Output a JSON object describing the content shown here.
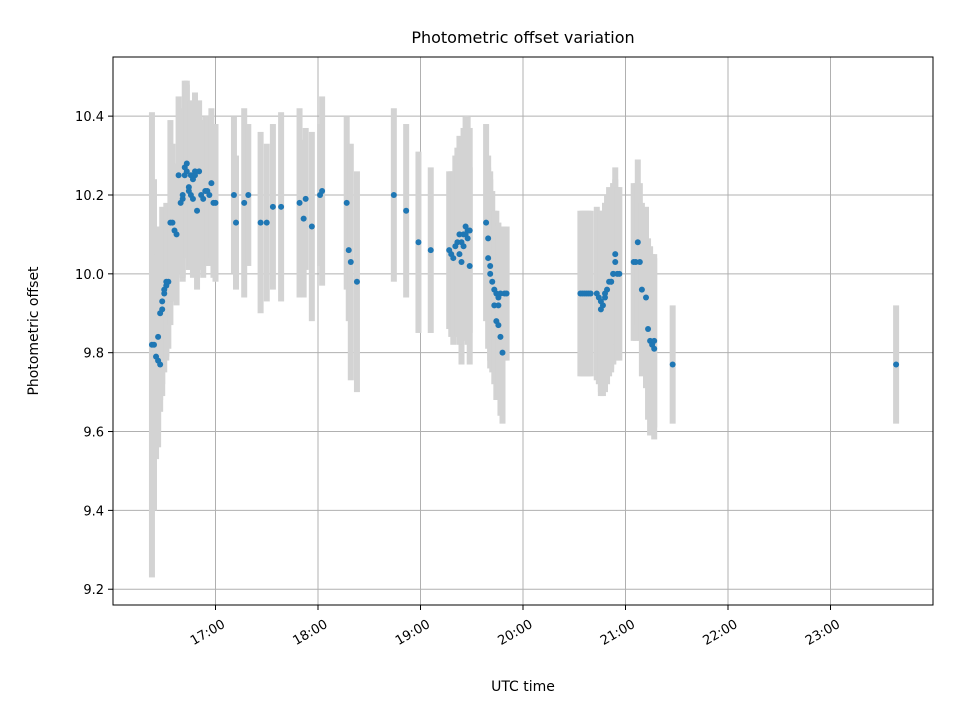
{
  "chart_data": {
    "type": "scatter",
    "title": "Photometric offset variation",
    "xlabel": "UTC time",
    "ylabel": "Photometric offset",
    "x_unit": "hours UTC",
    "xlim": [
      16.0,
      24.0
    ],
    "ylim": [
      9.16,
      10.55
    ],
    "x_ticks": [
      {
        "value": 17,
        "label": "17:00"
      },
      {
        "value": 18,
        "label": "18:00"
      },
      {
        "value": 19,
        "label": "19:00"
      },
      {
        "value": 20,
        "label": "20:00"
      },
      {
        "value": 21,
        "label": "21:00"
      },
      {
        "value": 22,
        "label": "22:00"
      },
      {
        "value": 23,
        "label": "23:00"
      }
    ],
    "y_ticks": [
      {
        "value": 9.2,
        "label": "9.2"
      },
      {
        "value": 9.4,
        "label": "9.4"
      },
      {
        "value": 9.6,
        "label": "9.6"
      },
      {
        "value": 9.8,
        "label": "9.8"
      },
      {
        "value": 10.0,
        "label": "10.0"
      },
      {
        "value": 10.2,
        "label": "10.2"
      },
      {
        "value": 10.4,
        "label": "10.4"
      }
    ],
    "grid": true,
    "colors": {
      "point": "#1f77b4",
      "errorbar": "#d3d3d3",
      "grid": "#b0b0b0"
    },
    "points": [
      [
        16.38,
        9.82,
        0.59
      ],
      [
        16.4,
        9.82,
        0.42
      ],
      [
        16.42,
        9.79,
        0.26
      ],
      [
        16.44,
        9.78,
        0.18
      ],
      [
        16.46,
        9.77,
        0.12
      ],
      [
        16.44,
        9.84,
        0.28
      ],
      [
        16.46,
        9.9,
        0.22
      ],
      [
        16.48,
        9.91,
        0.19
      ],
      [
        16.48,
        9.93,
        0.24
      ],
      [
        16.5,
        9.95,
        0.2
      ],
      [
        16.5,
        9.96,
        0.16
      ],
      [
        16.52,
        9.97,
        0.18
      ],
      [
        16.54,
        9.98,
        0.17
      ],
      [
        16.52,
        9.98,
        0.2
      ],
      [
        16.56,
        10.13,
        0.26
      ],
      [
        16.58,
        10.13,
        0.2
      ],
      [
        16.6,
        10.11,
        0.16
      ],
      [
        16.62,
        10.1,
        0.18
      ],
      [
        16.64,
        10.25,
        0.2
      ],
      [
        16.66,
        10.18,
        0.18
      ],
      [
        16.68,
        10.2,
        0.22
      ],
      [
        16.68,
        10.19,
        0.2
      ],
      [
        16.7,
        10.27,
        0.22
      ],
      [
        16.7,
        10.25,
        0.2
      ],
      [
        16.72,
        10.28,
        0.21
      ],
      [
        16.72,
        10.26,
        0.22
      ],
      [
        16.74,
        10.22,
        0.21
      ],
      [
        16.74,
        10.21,
        0.2
      ],
      [
        16.76,
        10.25,
        0.19
      ],
      [
        16.76,
        10.2,
        0.18
      ],
      [
        16.78,
        10.19,
        0.2
      ],
      [
        16.78,
        10.24,
        0.19
      ],
      [
        16.8,
        10.26,
        0.2
      ],
      [
        16.8,
        10.25,
        0.18
      ],
      [
        16.82,
        10.16,
        0.2
      ],
      [
        16.84,
        10.26,
        0.18
      ],
      [
        16.86,
        10.2,
        0.19
      ],
      [
        16.88,
        10.19,
        0.2
      ],
      [
        16.9,
        10.21,
        0.19
      ],
      [
        16.92,
        10.21,
        0.19
      ],
      [
        16.94,
        10.2,
        0.18
      ],
      [
        16.96,
        10.23,
        0.19
      ],
      [
        16.98,
        10.18,
        0.19
      ],
      [
        17.0,
        10.18,
        0.2
      ],
      [
        17.18,
        10.2,
        0.2
      ],
      [
        17.2,
        10.13,
        0.17
      ],
      [
        17.28,
        10.18,
        0.24
      ],
      [
        17.32,
        10.2,
        0.18
      ],
      [
        17.44,
        10.13,
        0.23
      ],
      [
        17.5,
        10.13,
        0.2
      ],
      [
        17.56,
        10.17,
        0.21
      ],
      [
        17.64,
        10.17,
        0.24
      ],
      [
        17.82,
        10.18,
        0.24
      ],
      [
        17.86,
        10.14,
        0.2
      ],
      [
        17.88,
        10.19,
        0.18
      ],
      [
        17.94,
        10.12,
        0.24
      ],
      [
        18.02,
        10.2,
        0.18
      ],
      [
        18.04,
        10.21,
        0.24
      ],
      [
        18.28,
        10.18,
        0.22
      ],
      [
        18.3,
        10.06,
        0.18
      ],
      [
        18.32,
        10.03,
        0.3
      ],
      [
        18.38,
        9.98,
        0.28
      ],
      [
        18.74,
        10.2,
        0.22
      ],
      [
        18.86,
        10.16,
        0.22
      ],
      [
        18.98,
        10.08,
        0.23
      ],
      [
        19.1,
        10.06,
        0.21
      ],
      [
        19.28,
        10.06,
        0.2
      ],
      [
        19.3,
        10.05,
        0.21
      ],
      [
        19.32,
        10.04,
        0.22
      ],
      [
        19.34,
        10.07,
        0.23
      ],
      [
        19.36,
        10.08,
        0.24
      ],
      [
        19.38,
        10.1,
        0.25
      ],
      [
        19.4,
        10.03,
        0.26
      ],
      [
        19.42,
        10.1,
        0.27
      ],
      [
        19.44,
        10.12,
        0.28
      ],
      [
        19.46,
        10.11,
        0.29
      ],
      [
        19.48,
        10.11,
        0.26
      ],
      [
        19.38,
        10.05,
        0.23
      ],
      [
        19.4,
        10.08,
        0.23
      ],
      [
        19.42,
        10.07,
        0.22
      ],
      [
        19.44,
        10.1,
        0.24
      ],
      [
        19.46,
        10.09,
        0.25
      ],
      [
        19.48,
        10.02,
        0.25
      ],
      [
        19.64,
        10.13,
        0.25
      ],
      [
        19.66,
        10.09,
        0.21
      ],
      [
        19.66,
        10.04,
        0.23
      ],
      [
        19.68,
        10.02,
        0.24
      ],
      [
        19.68,
        10.0,
        0.24
      ],
      [
        19.7,
        9.98,
        0.23
      ],
      [
        19.72,
        9.96,
        0.2
      ],
      [
        19.74,
        9.95,
        0.21
      ],
      [
        19.76,
        9.94,
        0.19
      ],
      [
        19.72,
        9.92,
        0.2
      ],
      [
        19.74,
        9.88,
        0.2
      ],
      [
        19.76,
        9.92,
        0.18
      ],
      [
        19.76,
        9.87,
        0.18
      ],
      [
        19.78,
        9.84,
        0.2
      ],
      [
        19.8,
        9.8,
        0.18
      ],
      [
        19.78,
        9.95,
        0.17
      ],
      [
        19.82,
        9.95,
        0.17
      ],
      [
        19.84,
        9.95,
        0.17
      ],
      [
        20.56,
        9.95,
        0.21
      ],
      [
        20.58,
        9.95,
        0.21
      ],
      [
        20.6,
        9.95,
        0.21
      ],
      [
        20.62,
        9.95,
        0.21
      ],
      [
        20.64,
        9.95,
        0.21
      ],
      [
        20.66,
        9.95,
        0.21
      ],
      [
        20.72,
        9.95,
        0.22
      ],
      [
        20.74,
        9.94,
        0.22
      ],
      [
        20.76,
        9.93,
        0.23
      ],
      [
        20.76,
        9.91,
        0.22
      ],
      [
        20.78,
        9.92,
        0.23
      ],
      [
        20.8,
        9.94,
        0.24
      ],
      [
        20.8,
        9.95,
        0.23
      ],
      [
        20.82,
        9.96,
        0.24
      ],
      [
        20.84,
        9.98,
        0.24
      ],
      [
        20.86,
        9.98,
        0.23
      ],
      [
        20.86,
        9.98,
        0.22
      ],
      [
        20.88,
        10.0,
        0.23
      ],
      [
        20.88,
        10.0,
        0.23
      ],
      [
        20.9,
        10.05,
        0.22
      ],
      [
        20.9,
        10.03,
        0.21
      ],
      [
        20.92,
        10.0,
        0.22
      ],
      [
        20.94,
        10.0,
        0.22
      ],
      [
        21.08,
        10.03,
        0.2
      ],
      [
        21.1,
        10.03,
        0.2
      ],
      [
        21.12,
        10.08,
        0.21
      ],
      [
        21.14,
        10.03,
        0.2
      ],
      [
        21.16,
        9.96,
        0.22
      ],
      [
        21.2,
        9.94,
        0.23
      ],
      [
        21.22,
        9.86,
        0.23
      ],
      [
        21.24,
        9.83,
        0.24
      ],
      [
        21.26,
        9.82,
        0.23
      ],
      [
        21.28,
        9.81,
        0.23
      ],
      [
        21.28,
        9.83,
        0.22
      ],
      [
        21.46,
        9.77,
        0.15
      ],
      [
        23.64,
        9.77,
        0.15
      ]
    ]
  }
}
